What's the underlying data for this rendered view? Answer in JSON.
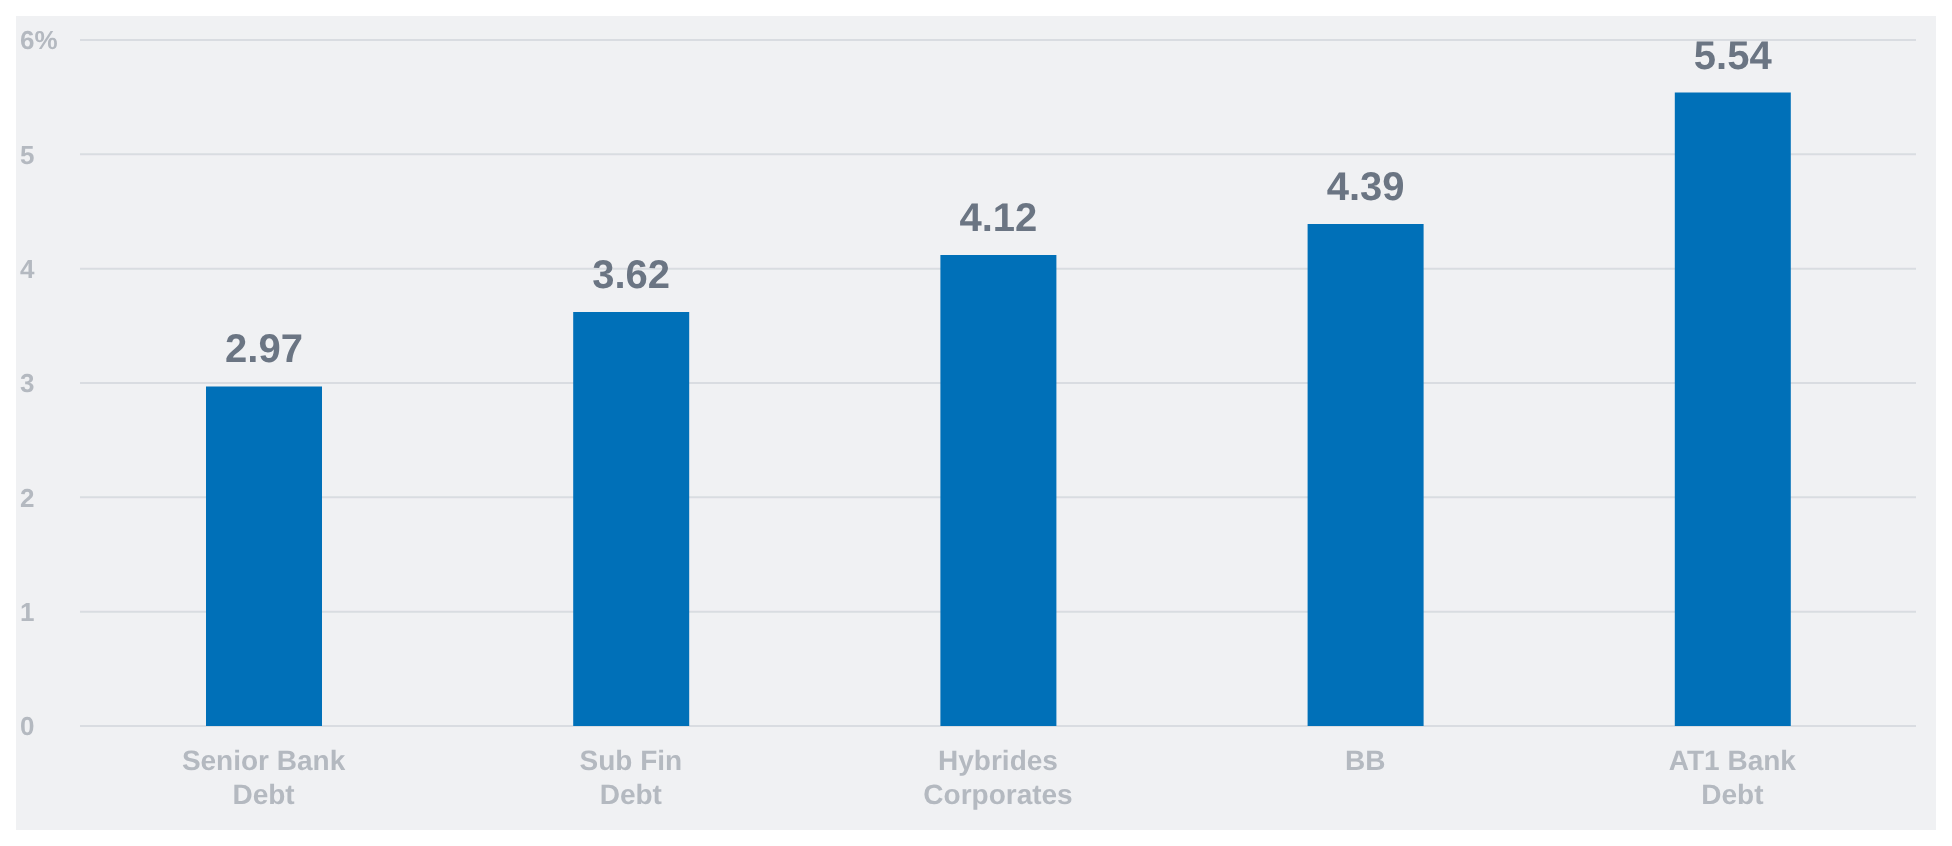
{
  "chart_data": {
    "type": "bar",
    "categories": [
      "Senior Bank Debt",
      "Sub Fin Debt",
      "Hybrides Corporates",
      "BB",
      "AT1 Bank Debt"
    ],
    "values": [
      2.97,
      3.62,
      4.12,
      4.39,
      5.54
    ],
    "color": "#0070b8",
    "ylim": [
      0,
      6
    ],
    "yticks": [
      0,
      1,
      2,
      3,
      4,
      5,
      {
        "value": 6,
        "label": "6%"
      }
    ],
    "grid": "y",
    "data_labels": true
  }
}
